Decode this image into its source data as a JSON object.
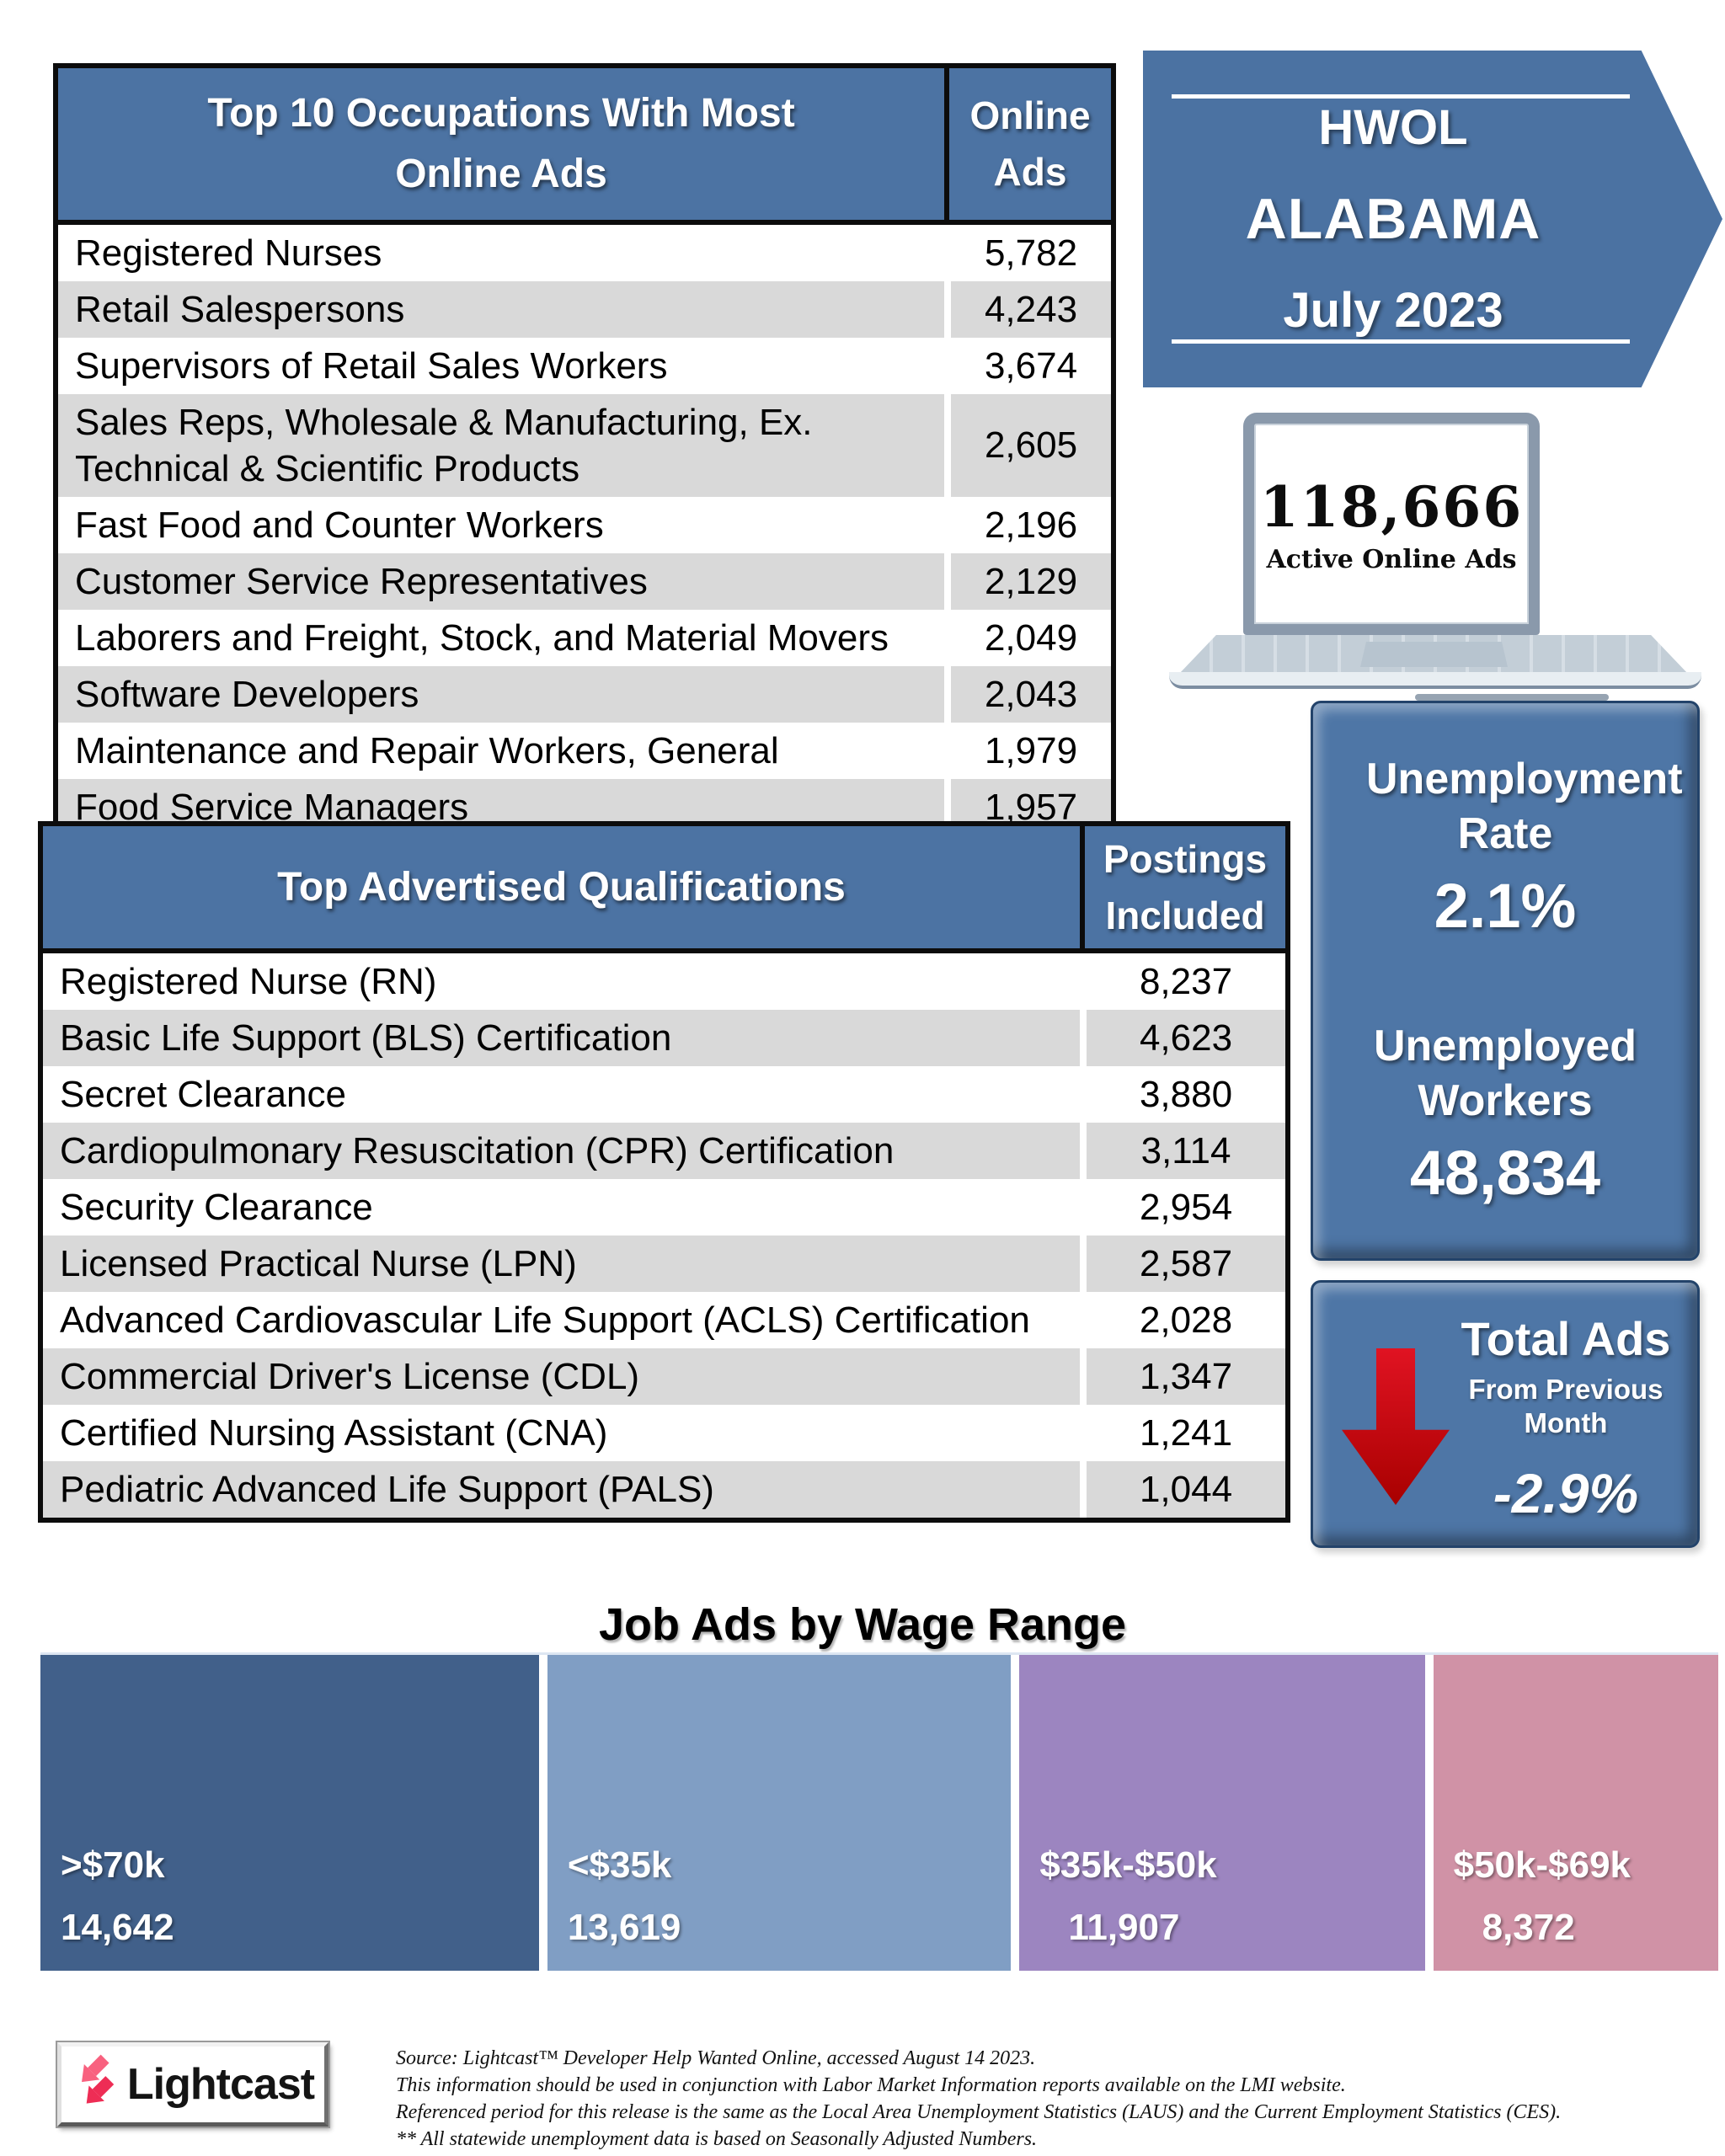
{
  "page": {
    "title": "HWOL Alabama July 2023 Help Wanted Online infographic"
  },
  "colors": {
    "primary_blue": "#4b72a2",
    "table_header_blue": "#4c73a3",
    "panel_blue": "#4e76a6",
    "stripe_gray": "#d9d9d9",
    "arrow_red": "#c30010",
    "lightcast_pink": "#f4436c"
  },
  "banner": {
    "program": "HWOL",
    "region": "ALABAMA",
    "period": "July 2023"
  },
  "active_ads": {
    "count": "118,666",
    "caption": "Active Online Ads"
  },
  "occupations_table": {
    "title": "Top 10 Occupations With Most Online Ads",
    "value_header": "Online Ads",
    "rows": [
      {
        "label": "Registered Nurses",
        "value": "5,782"
      },
      {
        "label": "Retail Salespersons",
        "value": "4,243"
      },
      {
        "label": "Supervisors of Retail Sales Workers",
        "value": "3,674"
      },
      {
        "label": "Sales Reps, Wholesale & Manufacturing, Ex. Technical & Scientific Products",
        "value": "2,605"
      },
      {
        "label": "Fast Food and Counter Workers",
        "value": "2,196"
      },
      {
        "label": "Customer Service Representatives",
        "value": "2,129"
      },
      {
        "label": "Laborers and Freight, Stock, and Material Movers",
        "value": "2,049"
      },
      {
        "label": "Software Developers",
        "value": "2,043"
      },
      {
        "label": "Maintenance and Repair Workers, General",
        "value": "1,979"
      },
      {
        "label": "Food Service Managers",
        "value": "1,957"
      }
    ]
  },
  "qualifications_table": {
    "title": "Top Advertised Qualifications",
    "value_header": "Postings Included",
    "rows": [
      {
        "label": "Registered Nurse (RN)",
        "value": "8,237"
      },
      {
        "label": "Basic Life Support (BLS) Certification",
        "value": "4,623"
      },
      {
        "label": "Secret Clearance",
        "value": "3,880"
      },
      {
        "label": "Cardiopulmonary Resuscitation (CPR) Certification",
        "value": "3,114"
      },
      {
        "label": "Security Clearance",
        "value": "2,954"
      },
      {
        "label": "Licensed Practical Nurse (LPN)",
        "value": "2,587"
      },
      {
        "label": "Advanced Cardiovascular Life Support (ACLS) Certification",
        "value": "2,028"
      },
      {
        "label": "Commercial Driver's License (CDL)",
        "value": "1,347"
      },
      {
        "label": "Certified Nursing Assistant (CNA)",
        "value": "1,241"
      },
      {
        "label": "Pediatric Advanced Life Support (PALS)",
        "value": "1,044"
      }
    ]
  },
  "unemployment": {
    "title": "Unemployment Rate",
    "rate": "2.1%",
    "workers_title": "Unemployed Workers",
    "workers_count": "48,834"
  },
  "total_ads_change": {
    "title": "Total Ads",
    "subtitle": "From Previous Month",
    "value": "-2.9%"
  },
  "chart_data": {
    "type": "bar",
    "variant": "proportional-width segment strip (single stacked horizontal band)",
    "title": "Job Ads by Wage Range",
    "categories": [
      ">$70k",
      "<$35k",
      "$35k-$50k",
      "$50k-$69k"
    ],
    "values": [
      14642,
      13619,
      11907,
      8372
    ],
    "value_labels": [
      "14,642",
      "13,619",
      "11,907",
      "8,372"
    ],
    "colors": [
      "#41608a",
      "#809ec4",
      "#9c85c0",
      "#d092a6"
    ],
    "orientation": "horizontal",
    "legend": "none",
    "grid": false
  },
  "footer": {
    "logo_text": "Lightcast",
    "source_lines": [
      "Source:  Lightcast™ Developer Help Wanted Online, accessed August 14 2023.",
      "This information should be used in conjunction with Labor Market Information reports available on the LMI website.",
      "Referenced period for this release is the same as the Local Area Unemployment Statistics (LAUS) and the Current Employment Statistics (CES).",
      "** All statewide unemployment data is based on Seasonally Adjusted Numbers."
    ]
  }
}
